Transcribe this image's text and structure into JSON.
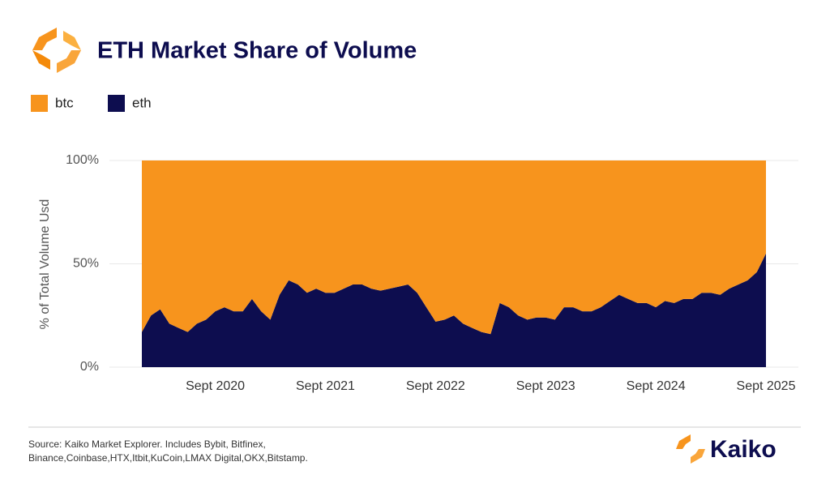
{
  "chart_data": {
    "type": "stacked-area",
    "title": "ETH Market Share of Volume",
    "y_label": "% of Total Volume Usd",
    "x": [
      "2020-01",
      "2020-02",
      "2020-03",
      "2020-04",
      "2020-05",
      "2020-06",
      "2020-07",
      "2020-08",
      "2020-09",
      "2020-10",
      "2020-11",
      "2020-12",
      "2021-01",
      "2021-02",
      "2021-03",
      "2021-04",
      "2021-05",
      "2021-06",
      "2021-07",
      "2021-08",
      "2021-09",
      "2021-10",
      "2021-11",
      "2021-12",
      "2022-01",
      "2022-02",
      "2022-03",
      "2022-04",
      "2022-05",
      "2022-06",
      "2022-07",
      "2022-08",
      "2022-09",
      "2022-10",
      "2022-11",
      "2022-12",
      "2023-01",
      "2023-02",
      "2023-03",
      "2023-04",
      "2023-05",
      "2023-06",
      "2023-07",
      "2023-08",
      "2023-09",
      "2023-10",
      "2023-11",
      "2023-12",
      "2024-01",
      "2024-02",
      "2024-03",
      "2024-04",
      "2024-05",
      "2024-06",
      "2024-07",
      "2024-08",
      "2024-09",
      "2024-10",
      "2024-11",
      "2024-12",
      "2025-01",
      "2025-02",
      "2025-03",
      "2025-04",
      "2025-05",
      "2025-06",
      "2025-07",
      "2025-08",
      "2025-09"
    ],
    "series": [
      {
        "name": "btc",
        "color": "#f7941d",
        "values": [
          83,
          75,
          72,
          79,
          81,
          83,
          79,
          77,
          73,
          71,
          73,
          73,
          67,
          73,
          77,
          65,
          58,
          60,
          64,
          62,
          64,
          64,
          62,
          60,
          60,
          62,
          63,
          62,
          61,
          60,
          64,
          71,
          78,
          77,
          75,
          79,
          81,
          83,
          84,
          69,
          71,
          75,
          77,
          76,
          76,
          77,
          71,
          71,
          73,
          73,
          71,
          68,
          65,
          67,
          69,
          69,
          71,
          68,
          69,
          67,
          67,
          64,
          64,
          65,
          62,
          60,
          58,
          54,
          45
        ]
      },
      {
        "name": "eth",
        "color": "#0d0d4f",
        "values": [
          17,
          25,
          28,
          21,
          19,
          17,
          21,
          23,
          27,
          29,
          27,
          27,
          33,
          27,
          23,
          35,
          42,
          40,
          36,
          38,
          36,
          36,
          38,
          40,
          40,
          38,
          37,
          38,
          39,
          40,
          36,
          29,
          22,
          23,
          25,
          21,
          19,
          17,
          16,
          31,
          29,
          25,
          23,
          24,
          24,
          23,
          29,
          29,
          27,
          27,
          29,
          32,
          35,
          33,
          31,
          31,
          29,
          32,
          31,
          33,
          33,
          36,
          36,
          35,
          38,
          40,
          42,
          46,
          55
        ]
      }
    ],
    "stack_order": [
      "eth",
      "btc"
    ],
    "xlim": [
      "2020-01",
      "2025-09"
    ],
    "xticks": [
      {
        "value": "2020-09",
        "label": "Sept 2020"
      },
      {
        "value": "2021-09",
        "label": "Sept 2021"
      },
      {
        "value": "2022-09",
        "label": "Sept 2022"
      },
      {
        "value": "2023-09",
        "label": "Sept 2023"
      },
      {
        "value": "2024-09",
        "label": "Sept 2024"
      },
      {
        "value": "2025-09",
        "label": "Sept 2025"
      }
    ],
    "ylim": [
      0,
      100
    ],
    "yticks": [
      {
        "value": 0,
        "label": "0%"
      },
      {
        "value": 50,
        "label": "50%"
      },
      {
        "value": 100,
        "label": "100%"
      }
    ],
    "grid": true,
    "legend": "top-left",
    "source": [
      "Source: Kaiko Market Explorer. Includes Bybit, Bitfinex,",
      "Binance,Coinbase,HTX,Itbit,KuCoin,LMAX Digital,OKX,Bitstamp."
    ]
  },
  "brand": "Kaiko"
}
